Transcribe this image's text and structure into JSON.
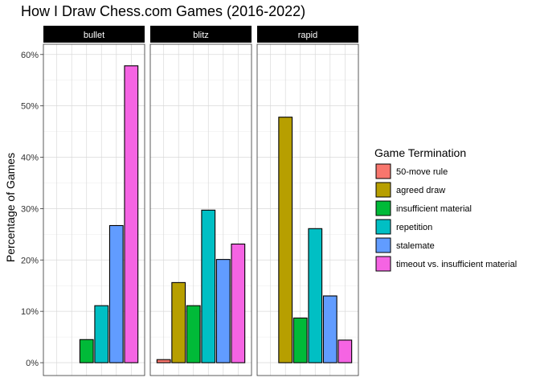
{
  "chart_data": {
    "type": "bar",
    "title": "How I Draw Chess.com Games (2016-2022)",
    "xlabel": "",
    "ylabel": "Percentage of Games",
    "ylim": [
      -0.025,
      0.62
    ],
    "yticks": [
      0,
      0.1,
      0.2,
      0.3,
      0.4,
      0.5,
      0.6
    ],
    "ytick_labels": [
      "0%",
      "10%",
      "20%",
      "30%",
      "40%",
      "50%",
      "60%"
    ],
    "grid": true,
    "legend_position": "right",
    "legend_title": "Game Termination",
    "categories": [
      "50-move rule",
      "agreed draw",
      "insufficient material",
      "repetition",
      "stalemate",
      "timeout vs. insufficient material"
    ],
    "colors": [
      "#F8766D",
      "#B79F00",
      "#00BA38",
      "#00BFC4",
      "#619CFF",
      "#F564E3"
    ],
    "facets": [
      {
        "name": "bullet",
        "values": [
          0,
          0,
          0.045,
          0.111,
          0.267,
          0.578
        ]
      },
      {
        "name": "blitz",
        "values": [
          0.006,
          0.156,
          0.111,
          0.297,
          0.201,
          0.231
        ]
      },
      {
        "name": "rapid",
        "values": [
          0,
          0.478,
          0.087,
          0.261,
          0.13,
          0.044
        ]
      }
    ]
  }
}
